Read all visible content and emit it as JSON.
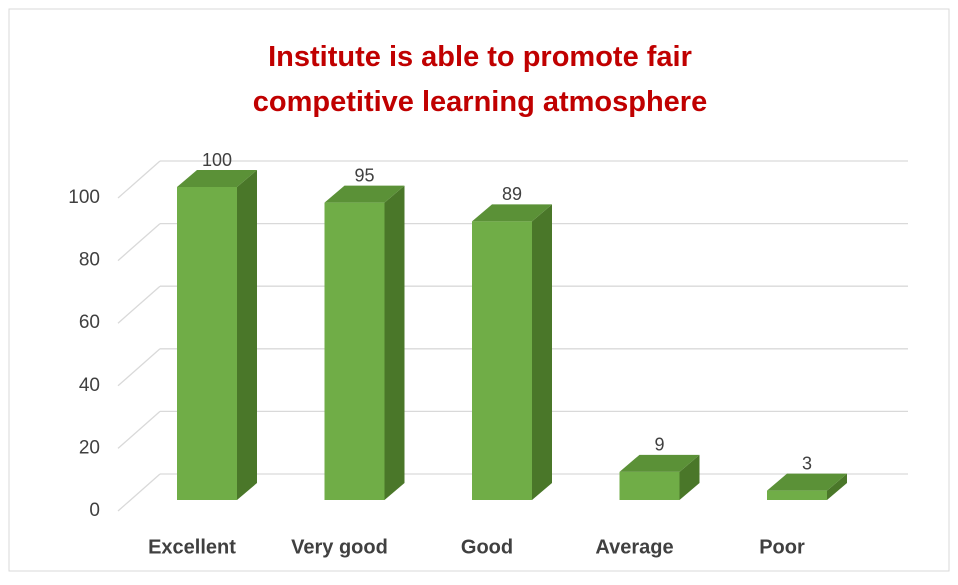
{
  "chart_data": {
    "type": "bar3d",
    "title": "Institute is able to promote fair competitive learning atmosphere",
    "categories": [
      "Excellent",
      "Very good",
      "Good",
      "Average",
      "Poor"
    ],
    "values": [
      100,
      95,
      89,
      9,
      3
    ],
    "color": "#70ad47",
    "ylim": [
      0,
      100
    ],
    "yticks": [
      0,
      20,
      40,
      60,
      80,
      100
    ],
    "grid": true
  }
}
